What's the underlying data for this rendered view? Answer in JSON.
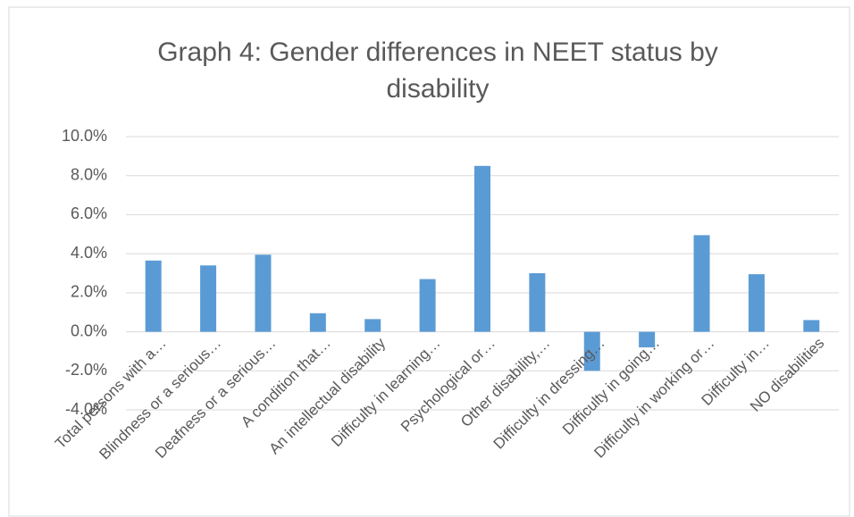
{
  "chart_data": {
    "type": "bar",
    "title": [
      "Graph 4: Gender differences in NEET status by",
      "disability"
    ],
    "categories": [
      "Total persons with a…",
      "Blindness or a serious…",
      "Deafness or a serious…",
      "A condition that…",
      "An intellectual disability",
      "Difficulty in learning…",
      "Psychological or…",
      "Other disability,…",
      "Difficulty in dressing…",
      "Difficulty in going…",
      "Difficulty in working or…",
      "Difficulty in…",
      "NO disabilities"
    ],
    "values": [
      3.65,
      3.4,
      3.95,
      0.95,
      0.65,
      2.7,
      8.5,
      3.0,
      -2.0,
      -0.8,
      4.95,
      2.95,
      0.6
    ],
    "color": "#5b9bd5",
    "ylim": [
      -4,
      10
    ],
    "yticks": [
      {
        "value": -4,
        "label": "-4.0%"
      },
      {
        "value": -2,
        "label": "-2.0%"
      },
      {
        "value": 0,
        "label": "0.0%"
      },
      {
        "value": 2,
        "label": "2.0%"
      },
      {
        "value": 4,
        "label": "4.0%"
      },
      {
        "value": 6,
        "label": "6.0%"
      },
      {
        "value": 8,
        "label": "8.0%"
      },
      {
        "value": 10,
        "label": "10.0%"
      }
    ],
    "grid": true
  }
}
